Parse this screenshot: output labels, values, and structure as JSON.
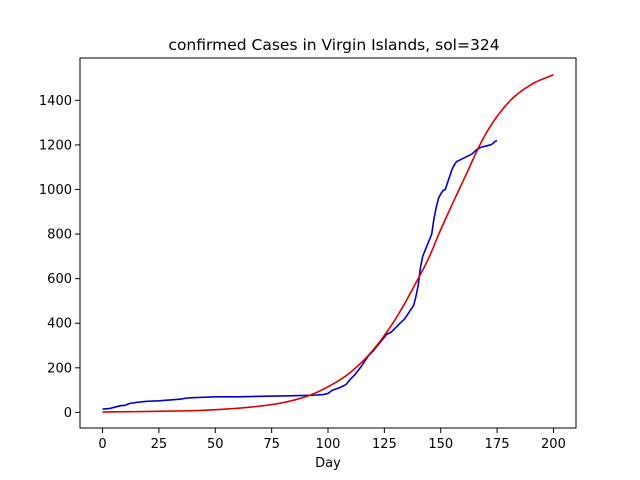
{
  "chart_data": {
    "type": "line",
    "title": "confirmed Cases in Virgin Islands, sol=324",
    "xlabel": "Day",
    "ylabel": "",
    "xlim": [
      -10,
      210
    ],
    "ylim": [
      -70,
      1590
    ],
    "x_ticks": [
      0,
      25,
      50,
      75,
      100,
      125,
      150,
      175,
      200
    ],
    "y_ticks": [
      0,
      200,
      400,
      600,
      800,
      1000,
      1200,
      1400
    ],
    "grid": false,
    "legend": "none",
    "series": [
      {
        "color": "#0000cc",
        "x": [
          0,
          3,
          6,
          8,
          10,
          12,
          15,
          18,
          20,
          25,
          30,
          35,
          37,
          40,
          45,
          50,
          60,
          70,
          80,
          90,
          95,
          98,
          100,
          102,
          105,
          108,
          110,
          112,
          115,
          117,
          118,
          120,
          122,
          124,
          126,
          128,
          130,
          132,
          134,
          136,
          138,
          139,
          140,
          141,
          142,
          143,
          144,
          146,
          147,
          148,
          149,
          150,
          151,
          152,
          153,
          154,
          155,
          156,
          157,
          158,
          160,
          162,
          163,
          164,
          165,
          166,
          167,
          168,
          170,
          172,
          173,
          174,
          175
        ],
        "y": [
          15,
          17,
          25,
          30,
          32,
          40,
          45,
          48,
          50,
          52,
          56,
          60,
          64,
          66,
          68,
          70,
          70,
          72,
          74,
          76,
          78,
          80,
          85,
          100,
          110,
          125,
          150,
          170,
          210,
          240,
          255,
          275,
          300,
          325,
          350,
          360,
          380,
          400,
          420,
          450,
          480,
          520,
          570,
          650,
          700,
          725,
          750,
          800,
          870,
          920,
          960,
          980,
          995,
          1000,
          1030,
          1060,
          1090,
          1110,
          1125,
          1130,
          1140,
          1150,
          1155,
          1160,
          1170,
          1180,
          1185,
          1190,
          1195,
          1200,
          1205,
          1215,
          1220
        ]
      },
      {
        "color": "#dd0000",
        "fit": "logistic",
        "x": [
          0,
          25,
          50,
          75,
          90,
          100,
          110,
          120,
          130,
          140,
          145,
          150,
          160,
          170,
          180,
          190,
          200
        ],
        "y": [
          2,
          5,
          12,
          35,
          70,
          115,
          180,
          280,
          420,
          600,
          700,
          820,
          1040,
          1250,
          1390,
          1470,
          1515
        ]
      }
    ]
  }
}
